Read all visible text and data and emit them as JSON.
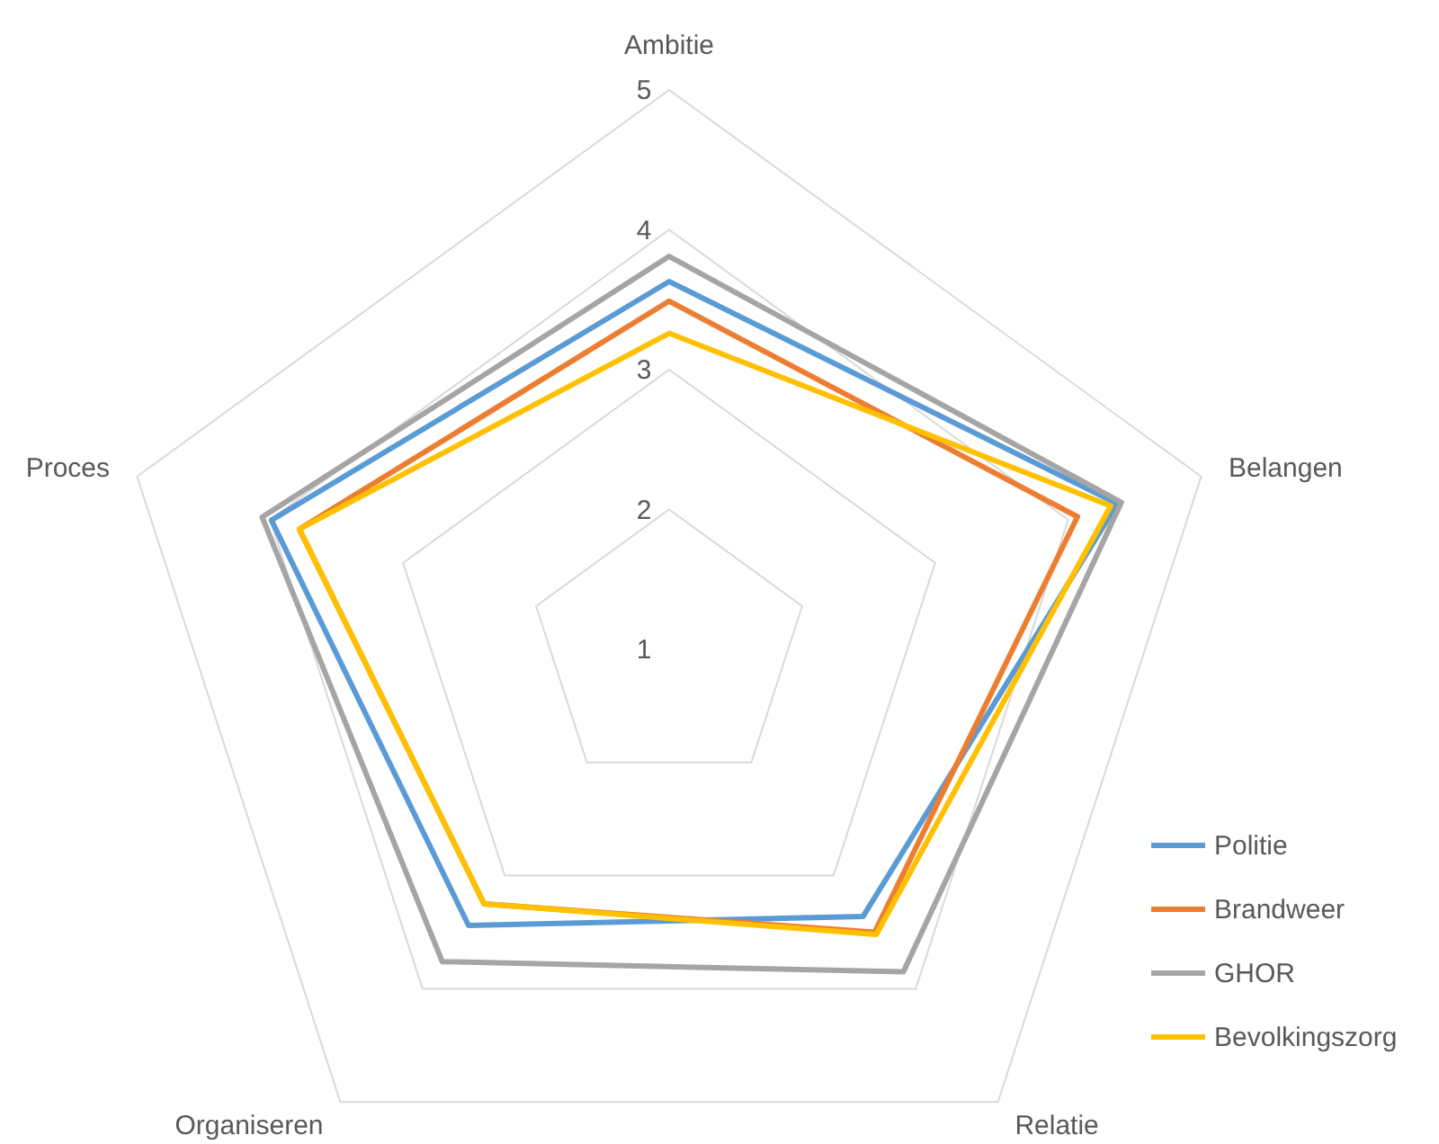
{
  "chart_data": {
    "type": "radar",
    "categories": [
      "Ambitie",
      "Belangen",
      "Relatie",
      "Organiseren",
      "Proces"
    ],
    "ylim": [
      1,
      5
    ],
    "yticks": [
      1,
      2,
      3,
      4,
      5
    ],
    "grid": true,
    "legend": "bottom right",
    "series": [
      {
        "name": "Politie",
        "color": "#5b9bd5",
        "values": [
          3.63,
          4.37,
          3.36,
          3.44,
          3.99
        ]
      },
      {
        "name": "Brandweer",
        "color": "#ed7d31",
        "values": [
          3.49,
          4.07,
          3.5,
          3.25,
          3.78
        ]
      },
      {
        "name": "GHOR",
        "color": "#a5a5a5",
        "values": [
          3.81,
          4.4,
          3.85,
          3.76,
          4.06
        ]
      },
      {
        "name": "Bevolkingszorg",
        "color": "#ffc000",
        "values": [
          3.26,
          4.32,
          3.52,
          3.25,
          3.78
        ]
      }
    ]
  }
}
